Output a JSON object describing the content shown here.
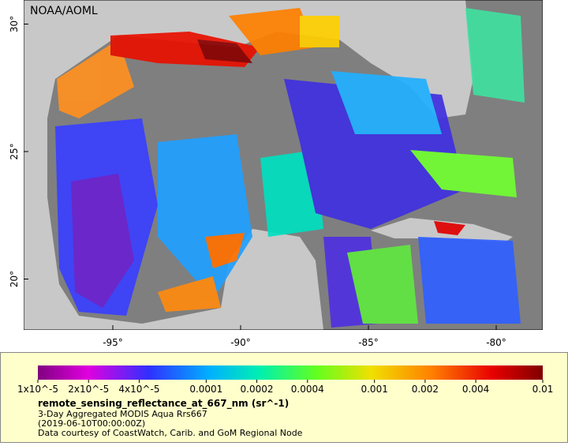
{
  "map": {
    "title": "NOAA/AOML",
    "lon_ticks": [
      {
        "value": -95,
        "label": "-95°"
      },
      {
        "value": -90,
        "label": "-90°"
      },
      {
        "value": -85,
        "label": "-85°"
      },
      {
        "value": -80,
        "label": "-80°"
      }
    ],
    "lat_ticks": [
      {
        "value": 20,
        "label": "20°"
      },
      {
        "value": 25,
        "label": "25°"
      },
      {
        "value": 30,
        "label": "30°"
      }
    ],
    "colorbar": {
      "scale": "log",
      "lim": [
        1e-05,
        0.01
      ],
      "ticks": [
        {
          "value": 1e-05,
          "label": "1x10^-5"
        },
        {
          "value": 2e-05,
          "label": "2x10^-5"
        },
        {
          "value": 4e-05,
          "label": "4x10^-5"
        },
        {
          "value": 0.0001,
          "label": "0.0001"
        },
        {
          "value": 0.0002,
          "label": "0.0002"
        },
        {
          "value": 0.0004,
          "label": "0.0004"
        },
        {
          "value": 0.001,
          "label": "0.001"
        },
        {
          "value": 0.002,
          "label": "0.002"
        },
        {
          "value": 0.004,
          "label": "0.004"
        },
        {
          "value": 0.01,
          "label": "0.01"
        }
      ]
    },
    "variable": "remote_sensing_reflectance_at_667_nm (sr^-1)",
    "caption": [
      "3-Day Aggregated MODIS Aqua Rrs667",
      "(2019-06-10T00:00:00Z)",
      "Data courtesy of CoastWatch, Carib. and GoM Regional Node"
    ]
  }
}
